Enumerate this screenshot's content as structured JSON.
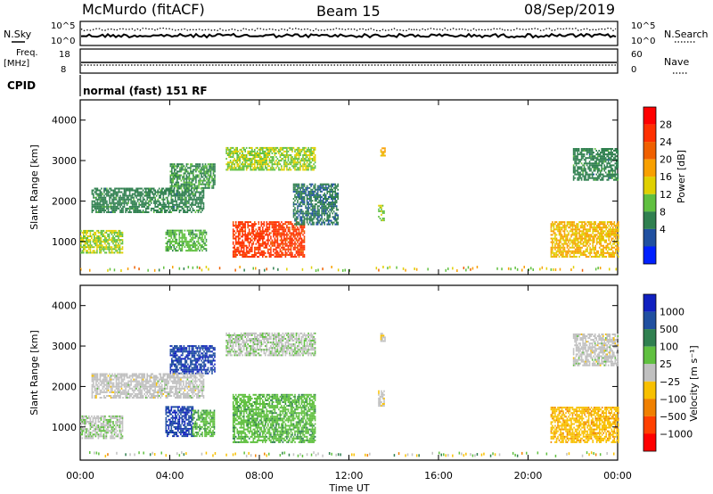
{
  "header": {
    "station": "McMurdo (fitACF)",
    "beam": "Beam 15",
    "date": "08/Sep/2019"
  },
  "top_panels": {
    "nsky_label": "N.Sky",
    "nsearch_label": "N.Search",
    "noise_ticks_left": [
      "10^5",
      "10^0"
    ],
    "noise_ticks_right": [
      "10^5",
      "10^0"
    ],
    "freq_label": "Freq.",
    "freq_unit": "[MHz]",
    "freq_ticks": [
      "18",
      "8"
    ],
    "nave_label": "Nave",
    "nave_ticks": [
      "60",
      "0"
    ],
    "cpid_label": "CPID",
    "cpid_text": "normal (fast) 151 RF"
  },
  "chart_data": [
    {
      "type": "heatmap",
      "title": "",
      "xlabel": "",
      "ylabel": "Slant Range [km]",
      "x_range_hours": [
        0,
        24
      ],
      "ylim": [
        180,
        4500
      ],
      "yticks": [
        "4000",
        "3000",
        "2000",
        "1000"
      ],
      "colorbar": {
        "label": "Power [dB]",
        "ticks": [
          "28",
          "24",
          "20",
          "16",
          "12",
          "8",
          "4"
        ],
        "colors": [
          "#ff0000",
          "#ff3000",
          "#f06000",
          "#f8a000",
          "#e0d000",
          "#60c040",
          "#308050",
          "#2050a0",
          "#0020ff"
        ],
        "range": [
          0,
          32
        ]
      },
      "echo_regions": [
        {
          "t0": 0.0,
          "t1": 1.9,
          "r0": 700,
          "r1": 1250,
          "value": 14
        },
        {
          "t0": 3.8,
          "t1": 5.6,
          "r0": 750,
          "r1": 1250,
          "value": 12
        },
        {
          "t0": 6.8,
          "t1": 10.0,
          "r0": 600,
          "r1": 1500,
          "value": 26
        },
        {
          "t0": 9.5,
          "t1": 11.5,
          "r0": 1400,
          "r1": 2400,
          "value": 8
        },
        {
          "t0": 6.5,
          "t1": 10.5,
          "r0": 2750,
          "r1": 3300,
          "value": 14
        },
        {
          "t0": 0.5,
          "t1": 5.5,
          "r0": 1700,
          "r1": 2300,
          "value": 9
        },
        {
          "t0": 4.0,
          "t1": 6.0,
          "r0": 2300,
          "r1": 2900,
          "value": 10
        },
        {
          "t0": 13.3,
          "t1": 13.6,
          "r0": 1500,
          "r1": 1900,
          "value": 14
        },
        {
          "t0": 13.4,
          "t1": 13.6,
          "r0": 3100,
          "r1": 3300,
          "value": 18
        },
        {
          "t0": 21.0,
          "t1": 24.0,
          "r0": 600,
          "r1": 1500,
          "value": 18
        },
        {
          "t0": 22.0,
          "t1": 24.0,
          "r0": 2500,
          "r1": 3300,
          "value": 9
        }
      ]
    },
    {
      "type": "heatmap",
      "title": "",
      "xlabel": "Time UT",
      "ylabel": "Slant Range [km]",
      "x_range_hours": [
        0,
        24
      ],
      "ylim": [
        180,
        4500
      ],
      "yticks": [
        "4000",
        "3000",
        "2000",
        "1000"
      ],
      "xticks": [
        "00:00",
        "04:00",
        "08:00",
        "12:00",
        "16:00",
        "20:00",
        "00:00"
      ],
      "colorbar": {
        "label": "Velocity [m s⁻¹]",
        "ticks": [
          "1000",
          "500",
          "100",
          "25",
          "−25",
          "−100",
          "−500",
          "−1000"
        ],
        "colors": [
          "#1020c0",
          "#2050a0",
          "#308050",
          "#60c040",
          "#c0c0c0",
          "#f8c000",
          "#f08000",
          "#ff4000",
          "#ff0000"
        ],
        "range": [
          -1200,
          1200
        ]
      },
      "echo_regions": [
        {
          "t0": 0.0,
          "t1": 1.9,
          "r0": 700,
          "r1": 1250,
          "value": 60
        },
        {
          "t0": 3.8,
          "t1": 5.0,
          "r0": 750,
          "r1": 1500,
          "value": 900
        },
        {
          "t0": 5.0,
          "t1": 6.0,
          "r0": 750,
          "r1": 1400,
          "value": 300
        },
        {
          "t0": 6.8,
          "t1": 10.5,
          "r0": 600,
          "r1": 1800,
          "value": 300
        },
        {
          "t0": 4.0,
          "t1": 6.0,
          "r0": 2300,
          "r1": 3000,
          "value": 900
        },
        {
          "t0": 6.5,
          "t1": 10.5,
          "r0": 2750,
          "r1": 3300,
          "value": 60
        },
        {
          "t0": 0.5,
          "t1": 5.5,
          "r0": 1700,
          "r1": 2300,
          "value": 0
        },
        {
          "t0": 13.3,
          "t1": 13.6,
          "r0": 1500,
          "r1": 1900,
          "value": -50
        },
        {
          "t0": 13.4,
          "t1": 13.6,
          "r0": 3100,
          "r1": 3300,
          "value": -50
        },
        {
          "t0": 21.0,
          "t1": 24.0,
          "r0": 600,
          "r1": 1500,
          "value": -300
        },
        {
          "t0": 22.0,
          "t1": 24.0,
          "r0": 2500,
          "r1": 3300,
          "value": 0
        }
      ]
    }
  ]
}
